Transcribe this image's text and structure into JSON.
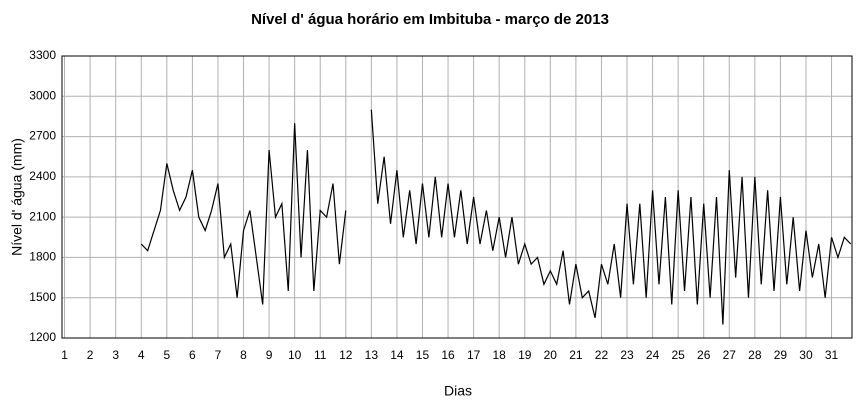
{
  "chart_data": {
    "type": "line",
    "title": "Nível d' água horário em Imbituba - março de 2013",
    "x_label": "Dias",
    "y_label": "Nível d' água (mm)",
    "color": "#000000",
    "grid": true,
    "xlim": [
      0.9,
      31.8
    ],
    "ylim": [
      1200,
      3300
    ],
    "xticks": [
      1,
      2,
      3,
      4,
      5,
      6,
      7,
      8,
      9,
      10,
      11,
      12,
      13,
      14,
      15,
      16,
      17,
      18,
      19,
      20,
      21,
      22,
      23,
      24,
      25,
      26,
      27,
      28,
      29,
      30,
      31
    ],
    "yticks": [
      1200,
      1500,
      1800,
      2100,
      2400,
      2700,
      3000,
      3300
    ],
    "x": [
      4,
      4.25,
      4.5,
      4.75,
      5,
      5.25,
      5.5,
      5.75,
      6,
      6.25,
      6.5,
      6.75,
      7,
      7.25,
      7.5,
      7.75,
      8,
      8.25,
      8.5,
      8.75,
      9,
      9.25,
      9.5,
      9.75,
      10,
      10.25,
      10.5,
      10.75,
      11,
      11.25,
      11.5,
      11.75,
      12,
      12.25,
      12.5,
      12.75,
      13,
      13.25,
      13.5,
      13.75,
      14,
      14.25,
      14.5,
      14.75,
      15,
      15.25,
      15.5,
      15.75,
      16,
      16.25,
      16.5,
      16.75,
      17,
      17.25,
      17.5,
      17.75,
      18,
      18.25,
      18.5,
      18.75,
      19,
      19.25,
      19.5,
      19.75,
      20,
      20.25,
      20.5,
      20.75,
      21,
      21.25,
      21.5,
      21.75,
      22,
      22.25,
      22.5,
      22.75,
      23,
      23.25,
      23.5,
      23.75,
      24,
      24.25,
      24.5,
      24.75,
      25,
      25.25,
      25.5,
      25.75,
      26,
      26.25,
      26.5,
      26.75,
      27,
      27.25,
      27.5,
      27.75,
      28,
      28.25,
      28.5,
      28.75,
      29,
      29.25,
      29.5,
      29.75,
      30,
      30.25,
      30.5,
      30.75,
      31,
      31.25,
      31.5,
      31.75
    ],
    "values": [
      1900,
      1850,
      2000,
      2150,
      2500,
      2300,
      2150,
      2250,
      2450,
      2100,
      2000,
      2150,
      2350,
      1800,
      1900,
      1500,
      2000,
      2150,
      1800,
      1450,
      2600,
      2100,
      2200,
      1550,
      2800,
      1800,
      2600,
      1550,
      2150,
      2100,
      2350,
      1750,
      2150,
      null,
      null,
      null,
      2900,
      2200,
      2550,
      2050,
      2450,
      1950,
      2300,
      1900,
      2350,
      1950,
      2400,
      1950,
      2350,
      1950,
      2300,
      1900,
      2250,
      1900,
      2150,
      1850,
      2100,
      1800,
      2100,
      1750,
      1900,
      1750,
      1800,
      1600,
      1700,
      1600,
      1850,
      1450,
      1750,
      1500,
      1550,
      1350,
      1750,
      1600,
      1900,
      1500,
      2200,
      1600,
      2200,
      1500,
      2300,
      1600,
      2250,
      1450,
      2300,
      1550,
      2250,
      1450,
      2200,
      1500,
      2250,
      1300,
      2450,
      1650,
      2400,
      1500,
      2400,
      1600,
      2300,
      1550,
      2250,
      1600,
      2100,
      1550,
      2000,
      1650,
      1900,
      1500,
      1950,
      1800,
      1950,
      1900
    ]
  }
}
